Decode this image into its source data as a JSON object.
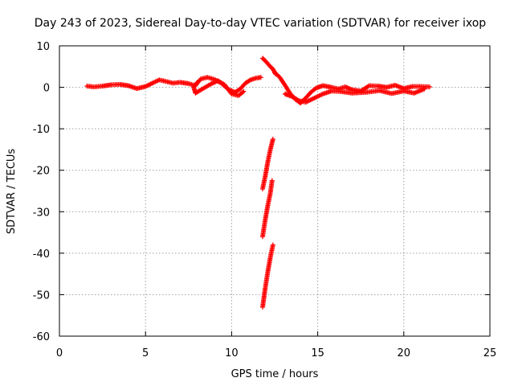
{
  "chart_data": {
    "type": "scatter",
    "title": "Day 243 of 2023, Sidereal Day-to-day VTEC variation (SDTVAR) for receiver ixop",
    "xlabel": "GPS time / hours",
    "ylabel": "SDTVAR / TECUs",
    "xlim": [
      0,
      25
    ],
    "ylim": [
      -60,
      10
    ],
    "xticks": [
      "0",
      "5",
      "10",
      "15",
      "20",
      "25"
    ],
    "yticks": [
      "10",
      "0",
      "-10",
      "-20",
      "-30",
      "-40",
      "-50",
      "-60"
    ],
    "grid": true,
    "marker": "plus",
    "color": "#ff0000",
    "series": [
      {
        "name": "main trace",
        "points": [
          [
            1.6,
            0.3
          ],
          [
            2.0,
            0.1
          ],
          [
            2.5,
            0.3
          ],
          [
            3.0,
            0.6
          ],
          [
            3.5,
            0.7
          ],
          [
            4.0,
            0.4
          ],
          [
            4.5,
            -0.3
          ],
          [
            5.0,
            0.2
          ],
          [
            5.5,
            1.2
          ],
          [
            5.8,
            1.8
          ],
          [
            6.2,
            1.4
          ],
          [
            6.6,
            1.0
          ],
          [
            7.0,
            1.2
          ],
          [
            7.5,
            0.9
          ],
          [
            7.9,
            0.4
          ],
          [
            8.2,
            2.0
          ],
          [
            8.6,
            2.4
          ],
          [
            9.0,
            1.9
          ],
          [
            9.4,
            1.0
          ],
          [
            9.8,
            -0.5
          ],
          [
            10.2,
            -1.2
          ],
          [
            10.5,
            -0.4
          ],
          [
            10.8,
            1.0
          ],
          [
            11.1,
            1.8
          ],
          [
            11.4,
            2.2
          ],
          [
            11.7,
            2.4
          ]
        ]
      },
      {
        "name": "main trace lower branch",
        "points": [
          [
            8.0,
            1.2
          ],
          [
            7.8,
            0.0
          ],
          [
            7.9,
            -1.4
          ],
          [
            8.3,
            -0.4
          ],
          [
            8.8,
            0.8
          ],
          [
            9.2,
            1.6
          ],
          [
            9.6,
            0.6
          ],
          [
            10.0,
            -1.6
          ],
          [
            10.4,
            -2.0
          ],
          [
            10.7,
            -1.0
          ]
        ]
      },
      {
        "name": "post-gap trace",
        "points": [
          [
            12.5,
            3.6
          ],
          [
            12.8,
            2.4
          ],
          [
            13.1,
            0.5
          ],
          [
            13.4,
            -1.5
          ],
          [
            13.7,
            -2.9
          ],
          [
            14.0,
            -3.8
          ],
          [
            14.3,
            -2.6
          ],
          [
            14.6,
            -1.2
          ],
          [
            14.9,
            -0.2
          ],
          [
            15.3,
            0.4
          ],
          [
            15.8,
            0.0
          ],
          [
            16.2,
            -0.4
          ],
          [
            16.6,
            0.1
          ],
          [
            17.0,
            -0.6
          ],
          [
            17.5,
            -0.9
          ],
          [
            18.0,
            0.4
          ],
          [
            18.5,
            0.3
          ],
          [
            19.0,
            0.0
          ],
          [
            19.5,
            0.5
          ],
          [
            20.0,
            -0.3
          ],
          [
            20.5,
            0.2
          ],
          [
            21.0,
            0.2
          ],
          [
            21.5,
            0.1
          ]
        ]
      },
      {
        "name": "post-gap lower branch",
        "points": [
          [
            13.1,
            -1.6
          ],
          [
            13.5,
            -2.2
          ],
          [
            13.9,
            -3.2
          ],
          [
            14.3,
            -3.6
          ],
          [
            14.8,
            -2.6
          ],
          [
            15.3,
            -1.6
          ],
          [
            15.8,
            -0.9
          ],
          [
            16.3,
            -1.0
          ],
          [
            17.0,
            -1.4
          ],
          [
            17.8,
            -1.2
          ],
          [
            18.6,
            -0.8
          ],
          [
            19.3,
            -1.5
          ],
          [
            20.0,
            -0.9
          ],
          [
            20.6,
            -1.4
          ],
          [
            21.2,
            -0.4
          ]
        ]
      },
      {
        "name": "near-vertical arc A",
        "points": [
          [
            11.8,
            7.0
          ],
          [
            12.0,
            6.2
          ],
          [
            12.2,
            5.2
          ],
          [
            12.4,
            4.4
          ],
          [
            12.55,
            3.2
          ]
        ]
      },
      {
        "name": "steep dip segment 1",
        "points": [
          [
            11.8,
            -24.5
          ],
          [
            11.95,
            -21.5
          ],
          [
            12.1,
            -18.0
          ],
          [
            12.25,
            -15.0
          ],
          [
            12.4,
            -12.5
          ]
        ]
      },
      {
        "name": "steep dip segment 2",
        "points": [
          [
            11.8,
            -36.0
          ],
          [
            11.95,
            -32.0
          ],
          [
            12.1,
            -28.5
          ],
          [
            12.25,
            -25.5
          ],
          [
            12.35,
            -22.5
          ]
        ]
      },
      {
        "name": "steep dip segment 3",
        "points": [
          [
            11.8,
            -53.0
          ],
          [
            11.95,
            -48.5
          ],
          [
            12.1,
            -44.5
          ],
          [
            12.25,
            -41.0
          ],
          [
            12.4,
            -38.0
          ]
        ]
      }
    ]
  }
}
